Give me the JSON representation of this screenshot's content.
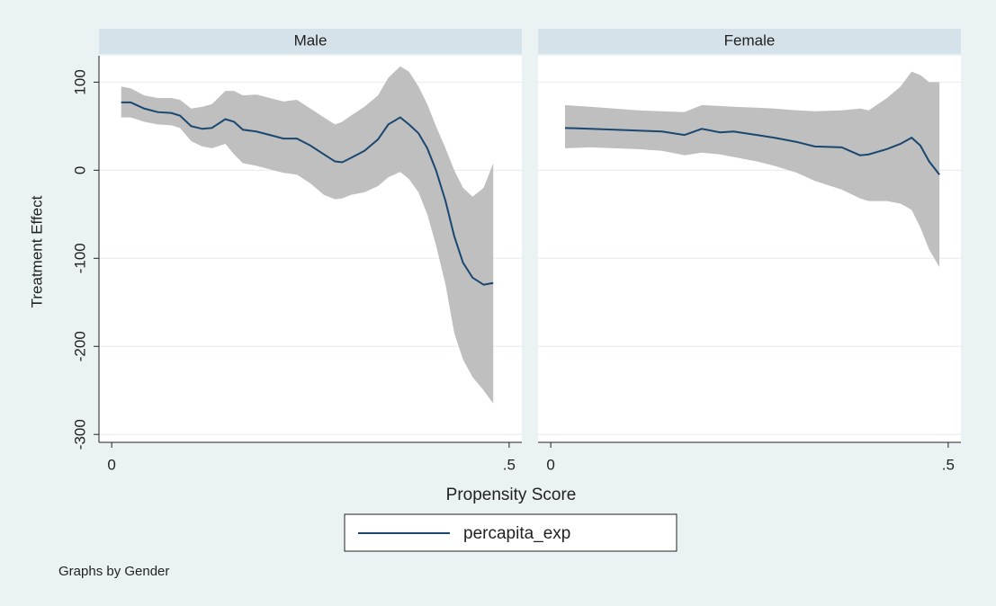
{
  "chart_data": {
    "type": "line",
    "ylabel": "Treatment Effect",
    "xlabel": "Propensity Score",
    "note": "Graphs by Gender",
    "series_name": "percapita_exp",
    "line_color": "#1a476f",
    "band_color": "#bfbfbf",
    "grid": true,
    "ylim": [
      -309,
      130
    ],
    "yticks": [
      100,
      0,
      -100,
      -200,
      -300
    ],
    "xlim": [
      -0.016,
      0.516
    ],
    "xticks": [
      0,
      {
        "value": 0.5,
        "label": ".5"
      }
    ],
    "panels": [
      {
        "title": "Male",
        "x": [
          0.012,
          0.024,
          0.041,
          0.058,
          0.075,
          0.086,
          0.1,
          0.114,
          0.126,
          0.143,
          0.154,
          0.165,
          0.182,
          0.199,
          0.216,
          0.233,
          0.25,
          0.267,
          0.281,
          0.29,
          0.301,
          0.318,
          0.335,
          0.348,
          0.363,
          0.374,
          0.386,
          0.397,
          0.408,
          0.42,
          0.431,
          0.442,
          0.454,
          0.468,
          0.48
        ],
        "values": [
          77,
          77,
          70,
          66,
          65,
          62,
          50,
          47,
          48,
          58,
          55,
          46,
          44,
          40,
          36,
          36,
          28,
          18,
          10,
          9,
          14,
          22,
          35,
          52,
          60,
          52,
          42,
          25,
          0,
          -35,
          -75,
          -105,
          -122,
          -130,
          -128
        ],
        "upper": [
          95,
          93,
          85,
          82,
          82,
          80,
          70,
          72,
          75,
          90,
          90,
          85,
          86,
          82,
          78,
          80,
          70,
          60,
          52,
          55,
          62,
          72,
          85,
          105,
          118,
          112,
          95,
          75,
          50,
          25,
          0,
          -20,
          -30,
          -20,
          8
        ],
        "lower": [
          60,
          60,
          55,
          52,
          51,
          48,
          33,
          27,
          25,
          30,
          18,
          8,
          5,
          1,
          -3,
          -5,
          -15,
          -28,
          -33,
          -32,
          -28,
          -25,
          -18,
          -8,
          -2,
          -10,
          -25,
          -50,
          -85,
          -130,
          -185,
          -215,
          -235,
          -250,
          -265
        ]
      },
      {
        "title": "Female",
        "x": [
          0.018,
          0.05,
          0.08,
          0.11,
          0.14,
          0.168,
          0.19,
          0.213,
          0.23,
          0.259,
          0.281,
          0.31,
          0.332,
          0.366,
          0.389,
          0.4,
          0.423,
          0.44,
          0.454,
          0.465,
          0.476,
          0.489
        ],
        "values": [
          48,
          47,
          46,
          45,
          44,
          40,
          47,
          43,
          44,
          40,
          37,
          32,
          27,
          26,
          17,
          18,
          24,
          30,
          37,
          28,
          10,
          -5
        ],
        "upper": [
          74,
          72,
          70,
          68,
          67,
          66,
          74,
          73,
          72,
          71,
          70,
          68,
          67,
          68,
          70,
          68,
          82,
          95,
          112,
          108,
          100,
          100
        ],
        "lower": [
          25,
          26,
          25,
          24,
          22,
          17,
          20,
          18,
          15,
          10,
          5,
          -3,
          -12,
          -22,
          -32,
          -35,
          -35,
          -38,
          -45,
          -65,
          -90,
          -110
        ]
      }
    ]
  }
}
